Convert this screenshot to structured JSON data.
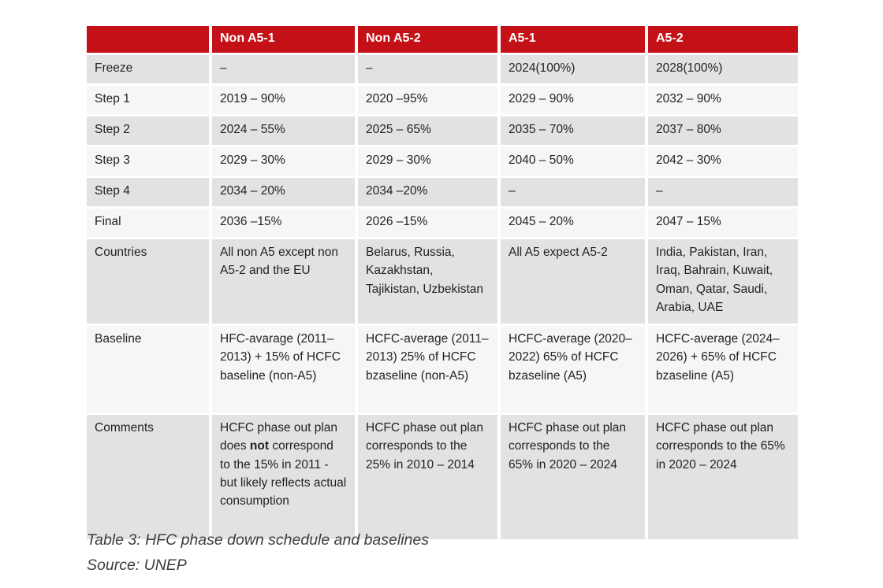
{
  "table": {
    "header": {
      "col0": "",
      "col1": "Non A5-1",
      "col2": "Non A5-2",
      "col3": "A5-1",
      "col4": "A5-2"
    },
    "rows": [
      {
        "label": "Freeze",
        "cells": [
          "–",
          "–",
          "2024(100%)",
          "2028(100%)"
        ]
      },
      {
        "label": "Step 1",
        "cells": [
          "2019 – 90%",
          "2020 –95%",
          "2029 – 90%",
          "2032 – 90%"
        ]
      },
      {
        "label": "Step 2",
        "cells": [
          "2024 – 55%",
          "2025 – 65%",
          "2035 – 70%",
          "2037 – 80%"
        ]
      },
      {
        "label": "Step 3",
        "cells": [
          "2029 – 30%",
          "2029 – 30%",
          "2040 – 50%",
          "2042 – 30%"
        ]
      },
      {
        "label": "Step 4",
        "cells": [
          "2034 – 20%",
          "2034 –20%",
          "–",
          "–"
        ]
      },
      {
        "label": "Final",
        "cells": [
          "2036 –15%",
          "2026 –15%",
          "2045 – 20%",
          "2047 – 15%"
        ]
      },
      {
        "label": "Countries",
        "cells": [
          "All non A5 except non A5-2 and the EU",
          "Belarus, Russia, Kazakhstan, Tajikistan, Uzbekistan",
          "All A5 expect A5-2",
          "India, Pakistan, Iran, Iraq, Bahrain, Kuwait, Oman, Qatar, Saudi, Arabia, UAE"
        ]
      },
      {
        "label": "Baseline",
        "cells": [
          "HFC-avarage (2011–2013) + 15% of HCFC baseline (non-A5)",
          "HCFC-average (2011–2013) 25% of HCFC bzaseline (non-A5)",
          "HCFC-average (2020–2022) 65% of HCFC bzaseline (A5)",
          "HCFC-average (2024–2026) + 65% of HCFC bzaseline (A5)"
        ]
      },
      {
        "label": "Comments",
        "cells": [
          "HCFC phase out plan does **not** correspond to the 15% in 2011 - but likely reflects actual consumption",
          "HCFC phase out plan corresponds to the 25% in 2010 – 2014",
          "HCFC phase out plan corresponds to the 65% in 2020 – 2024",
          "HCFC phase out plan corresponds to the 65% in 2020 – 2024"
        ]
      }
    ]
  },
  "caption": {
    "title": "Table 3: HFC phase down schedule and baselines",
    "source": "Source: UNEP"
  },
  "colors": {
    "header_red": "#c41117",
    "header_text": "#ffffff",
    "row_dark": "#e2e2e2",
    "row_light": "#f6f6f6",
    "body_text": "#231f20",
    "caption_text": "#3d3d3d"
  }
}
